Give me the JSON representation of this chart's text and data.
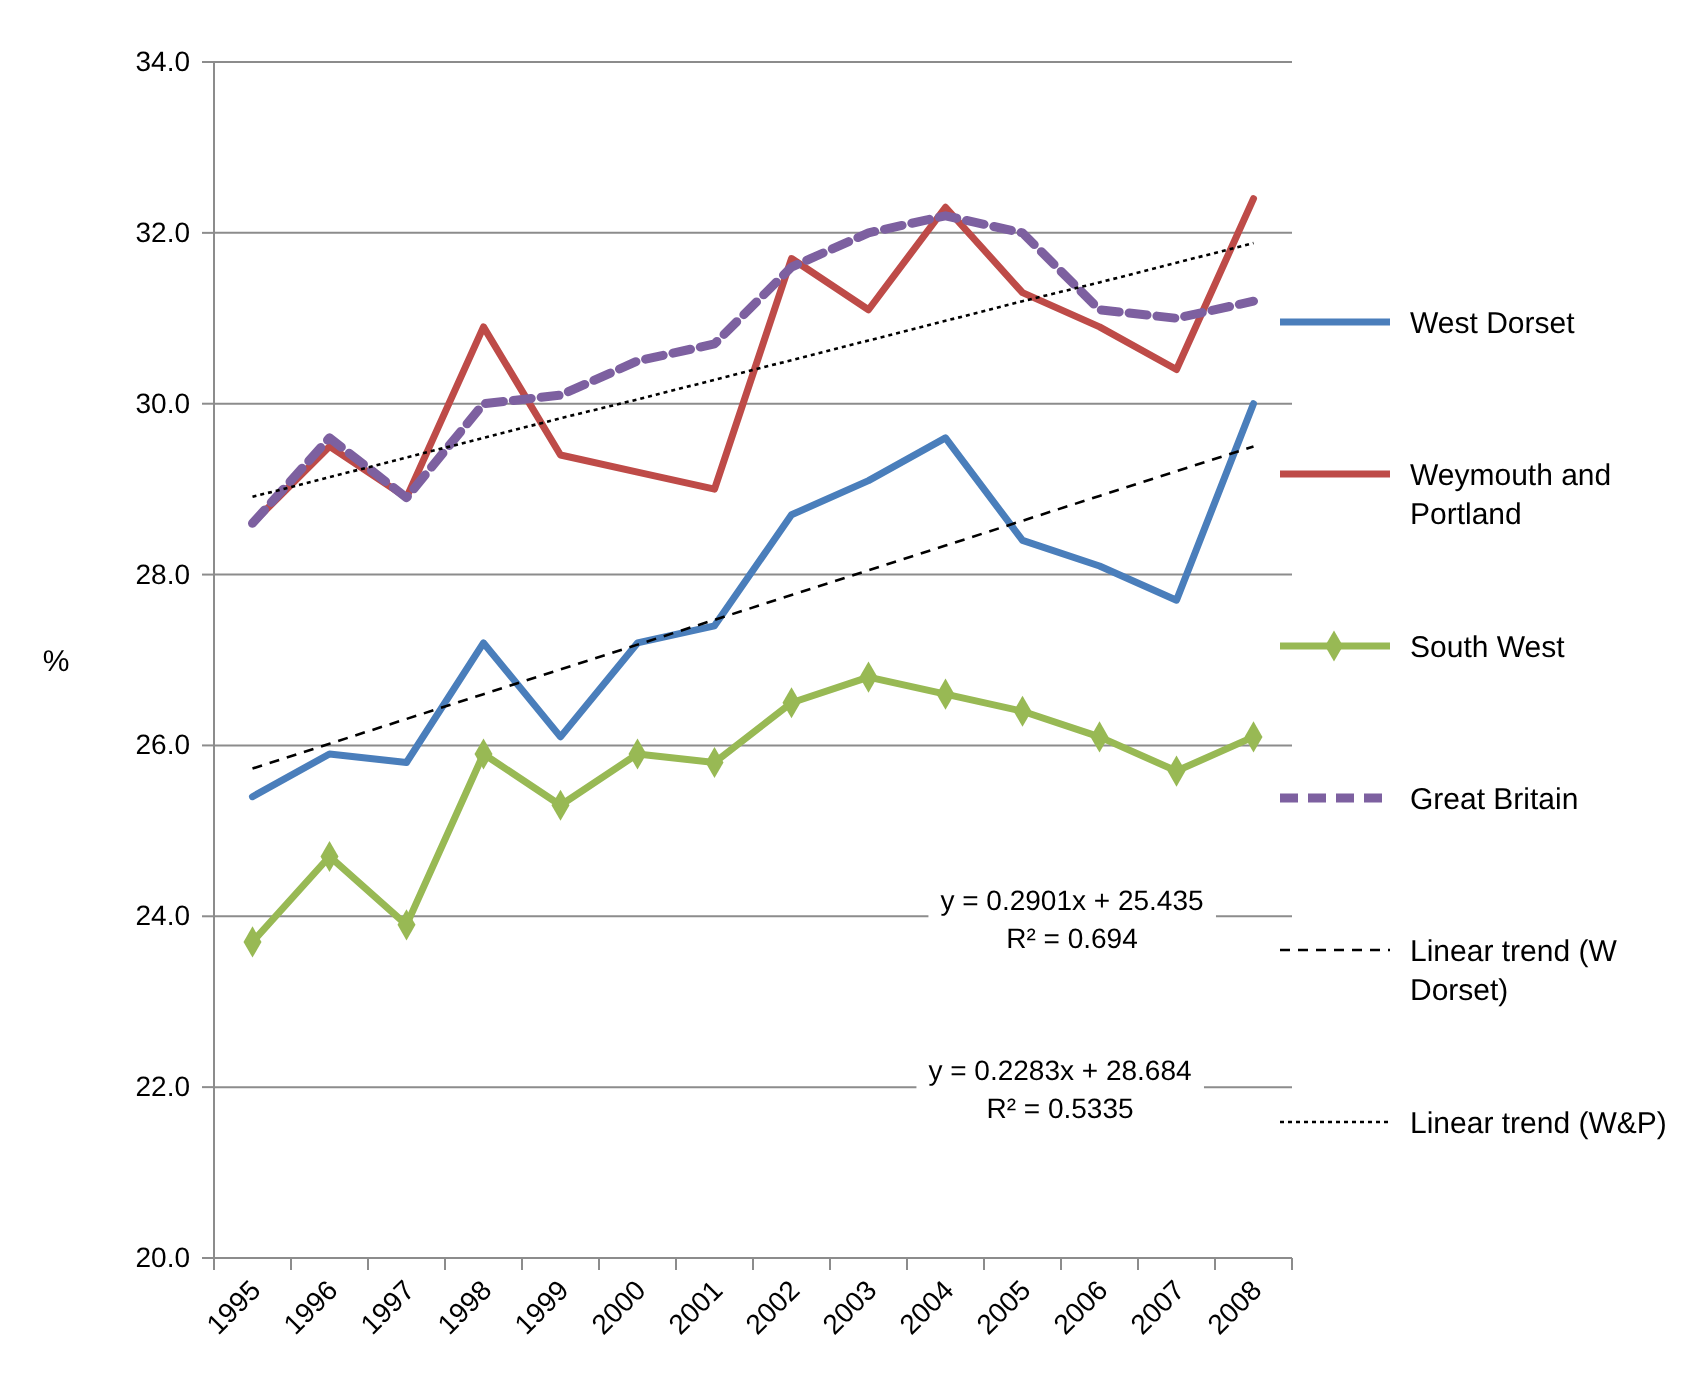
{
  "chart_data": {
    "type": "line",
    "ylabel": "%",
    "categories": [
      "1995",
      "1996",
      "1997",
      "1998",
      "1999",
      "2000",
      "2001",
      "2002",
      "2003",
      "2004",
      "2005",
      "2006",
      "2007",
      "2008"
    ],
    "series": [
      {
        "name": "West Dorset",
        "color": "#4a7ebb",
        "values": [
          25.4,
          25.9,
          25.8,
          27.2,
          26.1,
          27.2,
          27.4,
          28.7,
          29.1,
          29.6,
          28.4,
          28.1,
          27.7,
          30.0
        ]
      },
      {
        "name": "Weymouth and Portland",
        "color": "#be4b48",
        "values": [
          28.6,
          29.5,
          28.9,
          30.9,
          29.4,
          29.2,
          29.0,
          31.7,
          31.1,
          32.3,
          31.3,
          30.9,
          30.4,
          32.4
        ]
      },
      {
        "name": "South West",
        "color": "#98b954",
        "marker": "diamond",
        "values": [
          23.7,
          24.7,
          23.9,
          25.9,
          25.3,
          25.9,
          25.8,
          26.5,
          26.8,
          26.6,
          26.4,
          26.1,
          25.7,
          26.1
        ]
      },
      {
        "name": "Great Britain",
        "color": "#7d60a0",
        "line_style": "dashed",
        "values": [
          28.6,
          29.6,
          28.9,
          30.0,
          30.1,
          30.5,
          30.7,
          31.6,
          32.0,
          32.2,
          32.0,
          31.1,
          31.0,
          31.2
        ]
      },
      {
        "name": "Linear trend (W Dorset)",
        "type": "line",
        "color": "#000000",
        "line_style": "dashed",
        "values": [
          25.73,
          26.02,
          26.31,
          26.6,
          26.89,
          27.18,
          27.47,
          27.76,
          28.05,
          28.34,
          28.63,
          28.92,
          29.21,
          29.5
        ]
      },
      {
        "name": "Linear trend (W&P)",
        "type": "line",
        "color": "#000000",
        "line_style": "dotted",
        "values": [
          28.91,
          29.14,
          29.37,
          29.6,
          29.83,
          30.05,
          30.28,
          30.51,
          30.74,
          30.97,
          31.2,
          31.42,
          31.65,
          31.88
        ]
      }
    ],
    "ylim": [
      20,
      34
    ],
    "yticks": [
      {
        "value": 20,
        "label": "20.0"
      },
      {
        "value": 22,
        "label": "22.0"
      },
      {
        "value": 24,
        "label": "24.0"
      },
      {
        "value": 26,
        "label": "26.0"
      },
      {
        "value": 28,
        "label": "28.0"
      },
      {
        "value": 30,
        "label": "30.0"
      },
      {
        "value": 32,
        "label": "32.0"
      },
      {
        "value": 34,
        "label": "34.0"
      }
    ],
    "grid": "y",
    "legend": "right",
    "annotations": [
      "y = 0.2901x + 25.435\nR² = 0.694",
      "y = 0.2283x + 28.684\nR² = 0.5335"
    ]
  }
}
